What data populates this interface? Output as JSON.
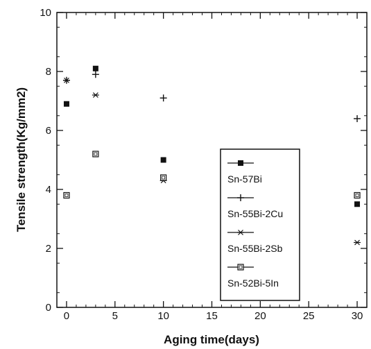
{
  "chart_data": {
    "type": "scatter",
    "title": "",
    "xlabel": "Aging time(days)",
    "ylabel": "Tensile strength(Kg/mm2)",
    "xlim": [
      -1,
      31
    ],
    "ylim": [
      0,
      10
    ],
    "xticks": [
      "0",
      "5",
      "10",
      "15",
      "20",
      "25",
      "30"
    ],
    "yticks": [
      "0",
      "2",
      "4",
      "6",
      "8",
      "10"
    ],
    "grid": false,
    "legend_position": "center-right",
    "series": [
      {
        "name": "Sn-57Bi",
        "marker": "filled-square",
        "x": [
          0,
          3,
          10,
          30
        ],
        "y": [
          6.9,
          8.1,
          5.0,
          3.5
        ]
      },
      {
        "name": "Sn-55Bi-2Cu",
        "marker": "plus",
        "x": [
          0,
          3,
          10,
          30
        ],
        "y": [
          7.7,
          7.9,
          7.1,
          6.4
        ]
      },
      {
        "name": "Sn-55Bi-2Sb",
        "marker": "asterisk",
        "x": [
          0,
          3,
          10,
          30
        ],
        "y": [
          7.7,
          7.2,
          4.3,
          2.2
        ]
      },
      {
        "name": "Sn-52Bi-5In",
        "marker": "open-square",
        "x": [
          0,
          3,
          10,
          30
        ],
        "y": [
          3.8,
          5.2,
          4.4,
          3.8
        ]
      }
    ]
  }
}
